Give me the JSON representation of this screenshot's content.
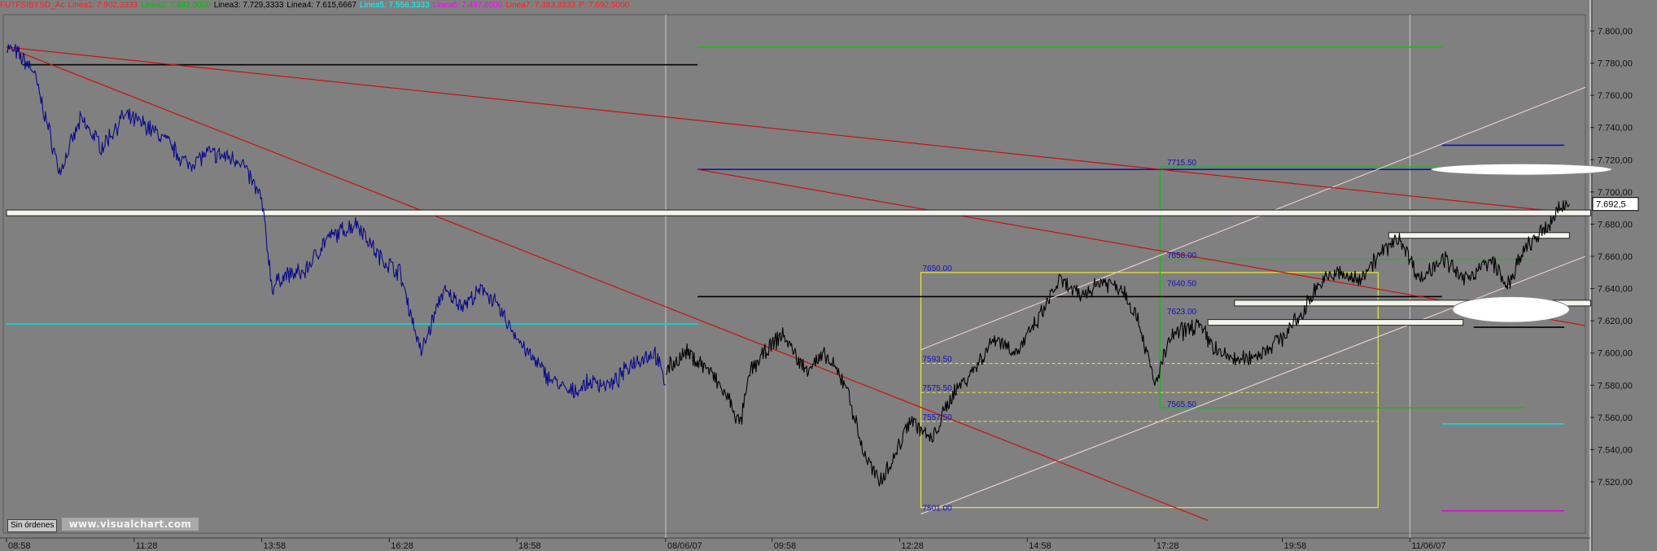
{
  "title_bar": {
    "symbol": "FUTFSIBYSD_Ac",
    "indicators": [
      {
        "name": "Linea1",
        "value": "7.902,3333",
        "color": "#ff2020"
      },
      {
        "name": "Linea2",
        "value": "7.843,0000",
        "color": "#00c000"
      },
      {
        "name": "Linea3",
        "value": "7.729,3333",
        "color": "#000000"
      },
      {
        "name": "Linea4",
        "value": "7.615,6667",
        "color": "#000000"
      },
      {
        "name": "Linea5",
        "value": "7.556,3333",
        "color": "#00ffff"
      },
      {
        "name": "Linea6",
        "value": "7.497,0000",
        "color": "#ff00ff"
      },
      {
        "name": "Linea7",
        "value": "7.383,3333",
        "color": "#ff2020"
      },
      {
        "name": "P",
        "value": "7.692,5000",
        "color": "#ff2020"
      }
    ]
  },
  "orders_button": "Sin órdenes",
  "watermark": "www.visualchart.com",
  "chart_data": {
    "type": "line",
    "title": "",
    "ylim": [
      7500,
      7810
    ],
    "y_ticks": [
      "7.800,00",
      "7.780,00",
      "7.760,00",
      "7.740,00",
      "7.720,00",
      "7.700,00",
      "7.680,00",
      "7.660,00",
      "7.640,00",
      "7.620,00",
      "7.600,00",
      "7.580,00",
      "7.560,00",
      "7.540,00",
      "7.520,00"
    ],
    "y_tick_values": [
      7800,
      7780,
      7760,
      7740,
      7720,
      7700,
      7680,
      7660,
      7640,
      7620,
      7600,
      7580,
      7560,
      7540,
      7520
    ],
    "x_ticks": [
      "08:58",
      "11:28",
      "13:58",
      "16:28",
      "18:58",
      "08/06/07",
      "09:58",
      "12:28",
      "14:58",
      "17:28",
      "19:58",
      "11/06/07"
    ],
    "x_tick_index": [
      0,
      24,
      48,
      72,
      96,
      124,
      144,
      168,
      192,
      216,
      240,
      264
    ],
    "last_price_label": "7.692,5",
    "last_price": 7692.5,
    "n_bars": 290,
    "colors": {
      "day1": "#0a0a8c",
      "day2": "#000000",
      "line_red": "#cc1010",
      "fib_yellow": "#e8e830",
      "green": "#10c010",
      "blue": "#1010c0",
      "cyan": "#00e0e0",
      "magenta": "#e000e0",
      "white": "#ffffff"
    },
    "series": [
      {
        "keypoints_day1": [
          [
            0,
            7790
          ],
          [
            2,
            7786
          ],
          [
            5,
            7776
          ],
          [
            8,
            7738
          ],
          [
            10,
            7712
          ],
          [
            14,
            7745
          ],
          [
            18,
            7728
          ],
          [
            22,
            7747
          ],
          [
            26,
            7742
          ],
          [
            30,
            7732
          ],
          [
            34,
            7717
          ],
          [
            38,
            7724
          ],
          [
            44,
            7720
          ],
          [
            48,
            7695
          ],
          [
            50,
            7640
          ],
          [
            52,
            7648
          ],
          [
            56,
            7650
          ],
          [
            60,
            7670
          ],
          [
            66,
            7681
          ],
          [
            70,
            7660
          ],
          [
            74,
            7650
          ],
          [
            78,
            7600
          ],
          [
            82,
            7638
          ],
          [
            86,
            7630
          ],
          [
            90,
            7640
          ],
          [
            94,
            7620
          ],
          [
            98,
            7600
          ],
          [
            102,
            7585
          ],
          [
            106,
            7575
          ],
          [
            110,
            7582
          ],
          [
            114,
            7580
          ],
          [
            118,
            7595
          ],
          [
            122,
            7600
          ],
          [
            124,
            7580
          ]
        ]
      },
      {
        "keypoints_day2": [
          [
            124,
            7590
          ],
          [
            128,
            7600
          ],
          [
            132,
            7590
          ],
          [
            136,
            7570
          ],
          [
            138,
            7555
          ],
          [
            140,
            7590
          ],
          [
            146,
            7612
          ],
          [
            150,
            7590
          ],
          [
            154,
            7598
          ],
          [
            158,
            7580
          ],
          [
            161,
            7540
          ],
          [
            164,
            7520
          ],
          [
            167,
            7535
          ],
          [
            170,
            7560
          ],
          [
            174,
            7545
          ],
          [
            178,
            7575
          ],
          [
            182,
            7590
          ],
          [
            186,
            7610
          ],
          [
            190,
            7600
          ],
          [
            194,
            7620
          ],
          [
            198,
            7645
          ],
          [
            202,
            7635
          ],
          [
            206,
            7645
          ],
          [
            210,
            7640
          ],
          [
            213,
            7620
          ],
          [
            216,
            7580
          ],
          [
            219,
            7610
          ],
          [
            224,
            7618
          ],
          [
            228,
            7600
          ],
          [
            232,
            7595
          ],
          [
            236,
            7600
          ],
          [
            240,
            7610
          ],
          [
            244,
            7625
          ],
          [
            246,
            7640
          ],
          [
            250,
            7650
          ],
          [
            254,
            7645
          ],
          [
            258,
            7660
          ],
          [
            262,
            7672
          ],
          [
            266,
            7645
          ],
          [
            270,
            7660
          ],
          [
            274,
            7645
          ],
          [
            278,
            7655
          ],
          [
            280,
            7656
          ],
          [
            282,
            7640
          ],
          [
            286,
            7666
          ],
          [
            290,
            7678
          ],
          [
            292,
            7690
          ],
          [
            294,
            7692.5
          ]
        ]
      }
    ],
    "price_labels": [
      {
        "text": "7715.50",
        "x": 218,
        "value": 7715.5
      },
      {
        "text": "7658.00",
        "x": 218,
        "value": 7658.0
      },
      {
        "text": "7650.00",
        "x": 172,
        "value": 7650.0
      },
      {
        "text": "7640.50",
        "x": 218,
        "value": 7640.5
      },
      {
        "text": "7623.00",
        "x": 218,
        "value": 7623.0
      },
      {
        "text": "7593.50",
        "x": 172,
        "value": 7593.5
      },
      {
        "text": "7575.50",
        "x": 172,
        "value": 7575.5
      },
      {
        "text": "7565.50",
        "x": 218,
        "value": 7565.5
      },
      {
        "text": "7557.50",
        "x": 172,
        "value": 7557.5
      },
      {
        "text": "7501.00",
        "x": 172,
        "value": 7501.0
      }
    ],
    "trendlines": {
      "red": [
        [
          [
            0,
            7790
          ],
          [
            297,
            7686
          ]
        ],
        [
          [
            0,
            7790
          ],
          [
            226,
            7496
          ]
        ],
        [
          [
            130,
            7714
          ],
          [
            297,
            7617
          ]
        ]
      ],
      "white_channel": [
        [
          [
            172,
            7602
          ],
          [
            297,
            7765
          ]
        ],
        [
          [
            172,
            7500
          ],
          [
            297,
            7660
          ]
        ]
      ]
    },
    "horizontal_lines": [
      {
        "y": 7779,
        "x": [
          3,
          130
        ],
        "color": "#000000"
      },
      {
        "y": 7790,
        "x": [
          130,
          270
        ],
        "color": "#10c010"
      },
      {
        "y": 7714,
        "x": [
          130,
          270
        ],
        "color": "#1010c0"
      },
      {
        "y": 7729,
        "x": [
          270,
          293
        ],
        "color": "#1010c0"
      },
      {
        "y": 7635,
        "x": [
          130,
          270
        ],
        "color": "#000000"
      },
      {
        "y": 7618,
        "x": [
          0,
          130
        ],
        "color": "#00e0e0"
      },
      {
        "y": 7616,
        "x": [
          276,
          293
        ],
        "color": "#000000"
      },
      {
        "y": 7556,
        "x": [
          270,
          293
        ],
        "color": "#00e0e0"
      },
      {
        "y": 7502,
        "x": [
          270,
          293
        ],
        "color": "#e000e0"
      }
    ],
    "fib_box": {
      "x": [
        172,
        258
      ],
      "top": 7650,
      "bottom": 7504,
      "levels": [
        7593.5,
        7575.5,
        7557.5
      ]
    },
    "green_box": {
      "x": [
        217,
        287
      ],
      "top": 7715.5,
      "bottom": 7566,
      "mid": 7658
    },
    "white_zones": [
      {
        "y": 7687,
        "x": [
          0,
          298
        ]
      },
      {
        "y": 7673,
        "x": [
          260,
          294
        ]
      },
      {
        "y": 7631,
        "x": [
          231,
          298
        ]
      },
      {
        "y": 7619,
        "x": [
          226,
          274
        ]
      }
    ],
    "ellipses": [
      {
        "x": 285,
        "y": 7714,
        "rx": 17,
        "ry": 3.5
      },
      {
        "x": 283,
        "y": 7627,
        "rx": 11,
        "ry": 8
      }
    ]
  }
}
